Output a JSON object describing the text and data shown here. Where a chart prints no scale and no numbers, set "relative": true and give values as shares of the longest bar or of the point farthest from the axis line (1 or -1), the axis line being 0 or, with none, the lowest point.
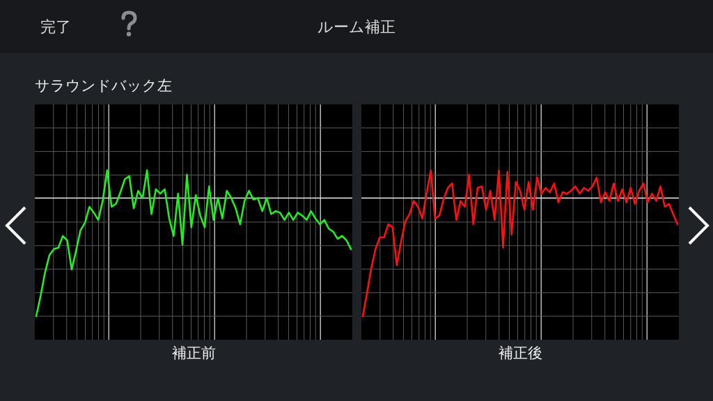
{
  "chart_data": [
    {
      "type": "other",
      "title": "ルーム補正",
      "annotations": [
        "完了"
      ]
    },
    {
      "type": "line",
      "title": "サラウンドバック左",
      "xlabel": "補正前",
      "relative": true,
      "grid": true,
      "ref_lines": [
        {
          "axis": "y",
          "value": 0.81,
          "color": "#f0f0f0"
        }
      ],
      "categories": [
        null,
        null,
        null,
        null,
        null,
        null,
        null,
        null,
        null,
        null,
        null,
        null,
        null,
        null,
        null,
        null,
        null,
        null,
        null,
        null,
        null,
        null,
        null,
        null,
        null,
        null,
        null,
        null,
        null,
        null,
        null,
        null,
        null,
        null,
        null,
        null,
        null,
        null,
        null,
        null,
        null,
        null,
        null,
        null,
        null,
        null,
        null,
        null,
        null,
        null,
        null,
        null,
        null,
        null,
        null,
        null,
        null,
        null,
        null,
        null,
        null,
        null,
        null,
        null,
        null,
        null,
        null,
        null,
        null,
        null,
        null,
        null
      ],
      "series": [
        {
          "color": "#22ee22",
          "values": [
            0,
            0.14,
            0.3,
            0.42,
            0.46,
            0.47,
            0.55,
            0.52,
            0.32,
            0.45,
            0.59,
            0.64,
            0.75,
            0.71,
            0.66,
            0.79,
            1.0,
            0.75,
            0.77,
            0.85,
            0.94,
            0.96,
            0.74,
            0.86,
            0.81,
            1.0,
            0.7,
            0.87,
            0.84,
            0.87,
            0.67,
            0.55,
            0.84,
            0.49,
            0.97,
            0.61,
            0.83,
            0.69,
            0.61,
            0.89,
            0.66,
            0.81,
            0.67,
            0.86,
            0.81,
            0.74,
            0.63,
            0.79,
            0.86,
            0.8,
            0.81,
            0.72,
            0.81,
            0.7,
            0.72,
            0.71,
            0.66,
            0.71,
            0.66,
            0.71,
            0.69,
            0.66,
            0.72,
            0.67,
            0.63,
            0.66,
            0.6,
            0.58,
            0.53,
            0.55,
            0.52,
            0.46
          ]
        }
      ]
    },
    {
      "type": "line",
      "xlabel": "補正後",
      "relative": true,
      "grid": true,
      "ref_lines": [
        {
          "axis": "y",
          "value": 0.81,
          "color": "#f0f0f0"
        }
      ],
      "categories": [
        null,
        null,
        null,
        null,
        null,
        null,
        null,
        null,
        null,
        null,
        null,
        null,
        null,
        null,
        null,
        null,
        null,
        null,
        null,
        null,
        null,
        null,
        null,
        null,
        null,
        null,
        null,
        null,
        null,
        null,
        null,
        null,
        null,
        null,
        null,
        null,
        null,
        null,
        null,
        null,
        null,
        null,
        null,
        null,
        null,
        null,
        null,
        null,
        null,
        null,
        null,
        null,
        null,
        null,
        null,
        null,
        null,
        null,
        null,
        null,
        null,
        null,
        null,
        null,
        null,
        null,
        null,
        null,
        null,
        null,
        null,
        null,
        null,
        null,
        null
      ],
      "series": [
        {
          "color": "#ff1010",
          "values": [
            0,
            0.16,
            0.33,
            0.46,
            0.54,
            0.54,
            0.63,
            0.61,
            0.35,
            0.51,
            0.65,
            0.7,
            0.79,
            0.75,
            0.67,
            0.84,
            1.0,
            0.67,
            0.69,
            0.8,
            0.88,
            0.91,
            0.66,
            0.79,
            0.75,
            0.97,
            0.63,
            0.88,
            0.89,
            0.73,
            0.86,
            0.66,
            1.0,
            0.47,
            0.99,
            0.56,
            0.92,
            0.86,
            0.73,
            0.92,
            0.73,
            0.95,
            0.84,
            0.88,
            0.85,
            0.91,
            0.78,
            0.85,
            0.84,
            0.86,
            0.89,
            0.84,
            0.88,
            0.86,
            0.89,
            0.95,
            0.78,
            0.85,
            0.79,
            0.91,
            0.79,
            0.87,
            0.78,
            0.88,
            0.77,
            0.86,
            0.91,
            0.78,
            0.84,
            0.79,
            0.89,
            0.75,
            0.77,
            0.7,
            0.63
          ]
        }
      ]
    }
  ]
}
